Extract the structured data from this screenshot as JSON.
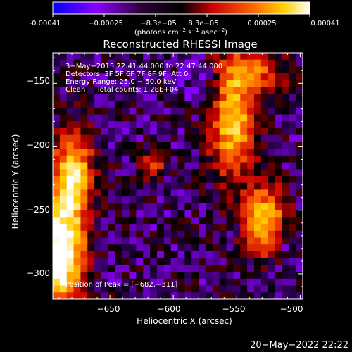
{
  "colorbar": {
    "ticks": [
      "-0.00041",
      "−0.00025",
      "−8.3e−05",
      "8.3e−05",
      "0.00025",
      "0.00041"
    ],
    "units_line_1": "(photons cm",
    "units_sup_1": "−2",
    "units_line_2": " s",
    "units_sup_2": "−1",
    "units_line_3": " asec",
    "units_sup_3": "−2",
    "units_close": ")"
  },
  "chart_data": {
    "type": "heatmap",
    "title": "Reconstructed RHESSI Image",
    "xlabel": "Heliocentric X (arcsec)",
    "ylabel": "Heliocentric Y (arcsec)",
    "xlim": [
      -695,
      -498
    ],
    "ylim": [
      -320,
      -126
    ],
    "xticks": [
      -650,
      -600,
      -550,
      -500
    ],
    "xtick_labels": [
      "−650",
      "−600",
      "−550",
      "−500"
    ],
    "yticks": [
      -300,
      -250,
      -200,
      -150
    ],
    "ytick_labels": [
      "−300",
      "−250",
      "−200",
      "−150"
    ],
    "color_range": [
      -0.00041,
      0.00041
    ],
    "colormap": [
      "#0000ff",
      "#8a00ff",
      "#000000",
      "#c80000",
      "#ff6600",
      "#ffd200",
      "#ffffff"
    ],
    "annotations": [
      "3−May−2015 22:41:44.000 to 22:47:44.000",
      "Detectors: 3F 5F 6F 7F 8F 9F, Att 0",
      "Energy Range: 25.0 − 50.0 keV",
      "Clean     Total counts: 1.28E+04"
    ],
    "peak_label": "Position of Peak = [−682,−311]",
    "peak": [
      -682,
      -311
    ]
  },
  "footer": {
    "date": "20−May−2022 22:22"
  }
}
